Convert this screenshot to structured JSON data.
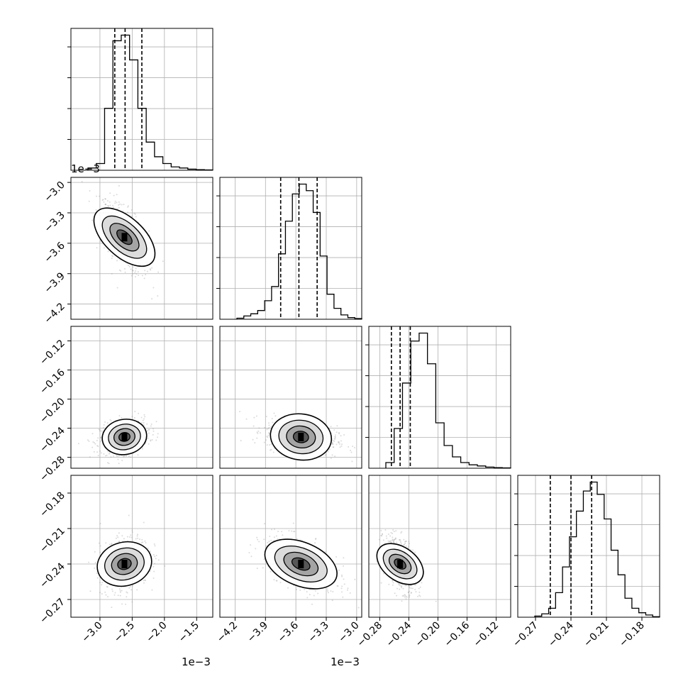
{
  "chart_data": {
    "type": "corner",
    "parameters": [
      {
        "axis_range": [
          -3.45,
          -1.25
        ],
        "tick_values": [
          -3.0,
          -2.5,
          -2.0,
          -1.5
        ],
        "tick_labels": [
          "−3.0",
          "−2.5",
          "−2.0",
          "−1.5"
        ],
        "offset_label": "1e−3"
      },
      {
        "axis_range": [
          -4.35,
          -2.95
        ],
        "tick_values": [
          -4.2,
          -3.9,
          -3.6,
          -3.3,
          -3.0
        ],
        "tick_labels": [
          "−4.2",
          "−3.9",
          "−3.6",
          "−3.3",
          "−3.0"
        ],
        "offset_label": "1e−3"
      },
      {
        "axis_range": [
          -0.295,
          -0.1
        ],
        "tick_values": [
          -0.28,
          -0.24,
          -0.2,
          -0.16,
          -0.12
        ],
        "tick_labels": [
          "−0.28",
          "−0.24",
          "−0.20",
          "−0.16",
          "−0.12"
        ],
        "offset_label": ""
      },
      {
        "axis_range": [
          -0.285,
          -0.165
        ],
        "tick_values": [
          -0.27,
          -0.24,
          -0.21,
          -0.18
        ],
        "tick_labels": [
          "−0.27",
          "−0.24",
          "−0.21",
          "−0.18"
        ],
        "offset_label": ""
      }
    ],
    "marginals": [
      {
        "counts": [
          2,
          6,
          55,
          115,
          120,
          98,
          55,
          25,
          12,
          6,
          3,
          2,
          1,
          0.5,
          0.3
        ],
        "quantiles": [
          -2.77,
          -2.61,
          -2.35
        ]
      },
      {
        "counts": [
          1,
          3,
          5,
          8,
          17,
          30,
          60,
          90,
          115,
          124,
          118,
          98,
          58,
          23,
          10,
          4,
          1.5,
          0.6
        ],
        "quantiles": [
          -3.75,
          -3.57,
          -3.39
        ]
      },
      {
        "counts": [
          5,
          35,
          75,
          112,
          119,
          92,
          40,
          20,
          10,
          5,
          3,
          2,
          1,
          0.5,
          0.3
        ],
        "quantiles": [
          -0.264,
          -0.252,
          -0.238
        ]
      },
      {
        "counts": [
          1,
          3,
          8,
          22,
          45,
          72,
          95,
          113,
          121,
          110,
          88,
          60,
          38,
          17,
          8,
          4,
          2,
          0.5
        ],
        "quantiles": [
          -0.2575,
          -0.24,
          -0.2225
        ]
      }
    ],
    "pairs": [
      {
        "x_param": 0,
        "y_param": 1,
        "mean": [
          -2.62,
          -3.54
        ],
        "sd": [
          0.18,
          0.17
        ],
        "corr": -0.62
      },
      {
        "x_param": 0,
        "y_param": 2,
        "mean": [
          -2.62,
          -0.252
        ],
        "sd": [
          0.18,
          0.011
        ],
        "corr": 0.25
      },
      {
        "x_param": 1,
        "y_param": 2,
        "mean": [
          -3.55,
          -0.252
        ],
        "sd": [
          0.17,
          0.011
        ],
        "corr": -0.3
      },
      {
        "x_param": 0,
        "y_param": 3,
        "mean": [
          -2.62,
          -0.24
        ],
        "sd": [
          0.18,
          0.011
        ],
        "corr": 0.25
      },
      {
        "x_param": 1,
        "y_param": 3,
        "mean": [
          -3.55,
          -0.24
        ],
        "sd": [
          0.17,
          0.011
        ],
        "corr": -0.55
      },
      {
        "x_param": 2,
        "y_param": 3,
        "mean": [
          -0.252,
          -0.24
        ],
        "sd": [
          0.011,
          0.011
        ],
        "corr": -0.45
      }
    ],
    "grid": true,
    "colors": {
      "scatter": "#999999",
      "density": "#000000",
      "line": "#000000",
      "grid": "#b0b0b0"
    }
  }
}
